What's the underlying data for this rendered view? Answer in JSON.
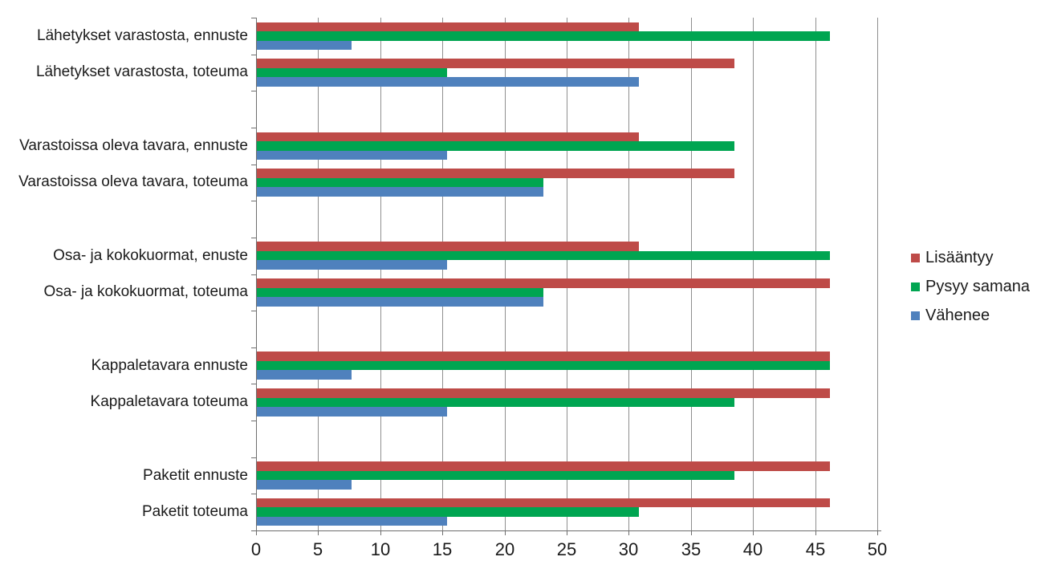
{
  "chart_data": {
    "type": "bar",
    "orientation": "horizontal",
    "title": "",
    "xlabel": "",
    "ylabel": "",
    "xlim": [
      0,
      50
    ],
    "x_ticks": [
      0,
      5,
      10,
      15,
      20,
      25,
      30,
      35,
      40,
      45,
      50
    ],
    "grid": true,
    "legend_position": "right",
    "group_size": 2,
    "blank_slot_between_groups": true,
    "categories": [
      "Lähetykset varastosta, ennuste",
      "Lähetykset varastosta, toteuma",
      "Varastoissa oleva tavara, ennuste",
      "Varastoissa oleva tavara, toteuma",
      "Osa- ja kokokuormat, enuste",
      "Osa- ja kokokuormat, toteuma",
      "Kappaletavara ennuste",
      "Kappaletavara toteuma",
      "Paketit ennuste",
      "Paketit toteuma"
    ],
    "series": [
      {
        "name": "Lisääntyy",
        "color": "#be4b48",
        "values": [
          30.8,
          38.5,
          30.8,
          38.5,
          30.8,
          46.2,
          46.2,
          46.2,
          46.2,
          46.2
        ]
      },
      {
        "name": "Pysyy samana",
        "color": "#00a551",
        "values": [
          46.2,
          15.4,
          38.5,
          23.1,
          46.2,
          23.1,
          46.2,
          38.5,
          38.5,
          30.8
        ]
      },
      {
        "name": "Vähenee",
        "color": "#4f81bd",
        "values": [
          7.7,
          30.8,
          15.4,
          23.1,
          15.4,
          23.1,
          7.7,
          15.4,
          7.7,
          15.4
        ]
      }
    ],
    "colors": {
      "gridline": "#8f8f8f",
      "axis": "#6e6e6e",
      "text": "#1a1a1a",
      "background": "#ffffff"
    }
  }
}
